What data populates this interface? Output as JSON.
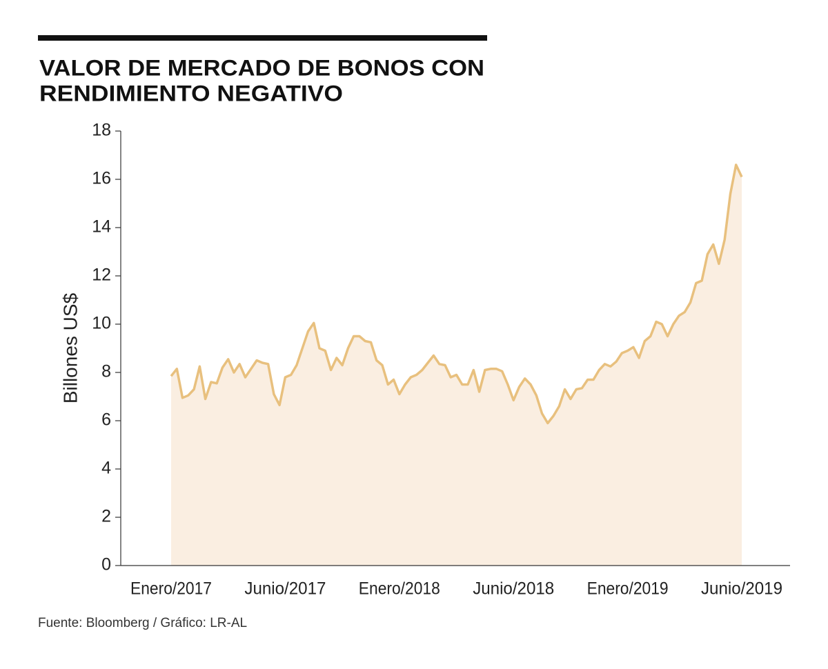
{
  "chart_data": {
    "type": "area",
    "title": [
      "VALOR DE MERCADO DE BONOS CON",
      "RENDIMIENTO NEGATIVO"
    ],
    "y_label": "Billones US$",
    "source": "Fuente: Bloomberg / Gráfico: LR-AL",
    "categories": [
      "Enero/2017",
      null,
      null,
      null,
      null,
      null,
      null,
      null,
      null,
      null,
      null,
      null,
      null,
      null,
      null,
      null,
      null,
      null,
      null,
      null,
      "Junio/2017",
      null,
      null,
      null,
      null,
      null,
      null,
      null,
      null,
      null,
      null,
      null,
      null,
      null,
      null,
      null,
      null,
      null,
      null,
      null,
      "Enero/2018",
      null,
      null,
      null,
      null,
      null,
      null,
      null,
      null,
      null,
      null,
      null,
      null,
      null,
      null,
      null,
      null,
      null,
      null,
      null,
      "Junio/2018",
      null,
      null,
      null,
      null,
      null,
      null,
      null,
      null,
      null,
      null,
      null,
      null,
      null,
      null,
      null,
      null,
      null,
      null,
      null,
      "Enero/2019",
      null,
      null,
      null,
      null,
      null,
      null,
      null,
      null,
      null,
      null,
      null,
      null,
      null,
      null,
      null,
      null,
      null,
      null,
      null,
      "Junio/2019"
    ],
    "values": [
      7.85,
      8.15,
      6.95,
      7.05,
      7.3,
      8.25,
      6.9,
      7.6,
      7.55,
      8.2,
      8.55,
      8.0,
      8.35,
      7.8,
      8.15,
      8.5,
      8.4,
      8.35,
      7.1,
      6.65,
      7.8,
      7.9,
      8.3,
      9.0,
      9.7,
      10.05,
      9.0,
      8.9,
      8.1,
      8.6,
      8.3,
      9.0,
      9.5,
      9.5,
      9.3,
      9.25,
      8.5,
      8.3,
      7.5,
      7.7,
      7.1,
      7.5,
      7.8,
      7.9,
      8.1,
      8.4,
      8.7,
      8.35,
      8.3,
      7.8,
      7.9,
      7.5,
      7.5,
      8.1,
      7.2,
      8.1,
      8.15,
      8.15,
      8.05,
      7.5,
      6.85,
      7.4,
      7.75,
      7.5,
      7.05,
      6.3,
      5.9,
      6.2,
      6.6,
      7.3,
      6.9,
      7.3,
      7.35,
      7.7,
      7.7,
      8.1,
      8.35,
      8.25,
      8.45,
      8.8,
      8.9,
      9.05,
      8.6,
      9.3,
      9.5,
      10.1,
      10.0,
      9.5,
      10.0,
      10.35,
      10.5,
      10.9,
      11.7,
      11.8,
      12.9,
      13.3,
      12.5,
      13.5,
      15.4,
      16.6,
      16.1
    ],
    "color": "#e8c07e",
    "fill": "#faeee1",
    "ylim": [
      0,
      18
    ],
    "yticks": [
      0,
      2,
      4,
      6,
      8,
      10,
      12,
      14,
      16,
      18
    ]
  }
}
